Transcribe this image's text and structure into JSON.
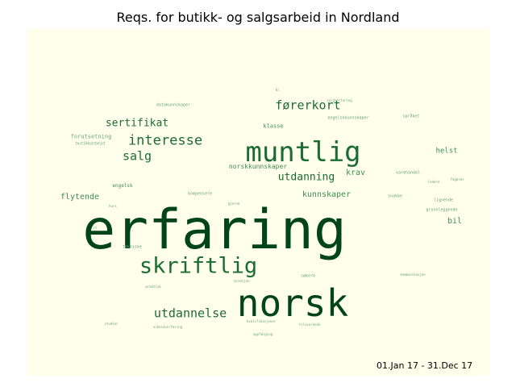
{
  "title": "Reqs. for butikk- og salgsarbeid in Nordland",
  "date_range": "01.Jan 17 - 31.Dec 17",
  "colors": {
    "background": "#ffffec",
    "dark": "#00441b",
    "medium": "#1b6b34",
    "light": "#3d8c55",
    "faint": "#6aa47a"
  },
  "words": [
    {
      "text": "erfaring",
      "weight": 1.0
    },
    {
      "text": "norsk",
      "weight": 0.55
    },
    {
      "text": "muntlig",
      "weight": 0.45
    },
    {
      "text": "skriftlig",
      "weight": 0.42
    },
    {
      "text": "utdannelse",
      "weight": 0.22
    },
    {
      "text": "interesse",
      "weight": 0.22
    },
    {
      "text": "salg",
      "weight": 0.2
    },
    {
      "text": "førerkort",
      "weight": 0.2
    },
    {
      "text": "sertifikat",
      "weight": 0.18
    },
    {
      "text": "utdanning",
      "weight": 0.16
    },
    {
      "text": "kunnskaper",
      "weight": 0.12
    },
    {
      "text": "flytende",
      "weight": 0.12
    },
    {
      "text": "krav",
      "weight": 0.12
    },
    {
      "text": "bil",
      "weight": 0.12
    },
    {
      "text": "helst",
      "weight": 0.11
    },
    {
      "text": "norskkunnskaper",
      "weight": 0.09
    },
    {
      "text": "klasse",
      "weight": 0.08
    },
    {
      "text": "forutsetning",
      "weight": 0.07
    },
    {
      "text": "engelsk",
      "weight": 0.07
    },
    {
      "text": "butikkarbeid",
      "weight": 0.05
    },
    {
      "text": "datakunnskaper",
      "weight": 0.05
    },
    {
      "text": "engelskkunnskaper",
      "weight": 0.05
    },
    {
      "text": "språket",
      "weight": 0.05
    },
    {
      "text": "varehandel",
      "weight": 0.05
    },
    {
      "text": "lignende",
      "weight": 0.05
    },
    {
      "text": "grunnleggende",
      "weight": 0.05
    },
    {
      "text": "snakke",
      "weight": 0.05
    },
    {
      "text": "kompensere",
      "weight": 0.05
    },
    {
      "text": "tekniske",
      "weight": 0.05
    },
    {
      "text": "søkere",
      "weight": 0.05
    },
    {
      "text": "arbeidserfaring",
      "weight": 0.04
    },
    {
      "text": "tilsvarende",
      "weight": 0.04
    },
    {
      "text": "oppfølging",
      "weight": 0.04
    },
    {
      "text": "fagbrev",
      "weight": 0.04
    },
    {
      "text": "gjerne",
      "weight": 0.04
    },
    {
      "text": "salgserfaring",
      "weight": 0.04
    },
    {
      "text": "kommunikasjon",
      "weight": 0.04
    },
    {
      "text": "studier",
      "weight": 0.04
    },
    {
      "text": "ledere",
      "weight": 0.03
    },
    {
      "text": "kvalifikasjoner",
      "weight": 0.03
    },
    {
      "text": "it",
      "weight": 0.03
    },
    {
      "text": "kl",
      "weight": 0.03
    },
    {
      "text": "kurs",
      "weight": 0.03
    },
    {
      "text": "bransjen",
      "weight": 0.03
    },
    {
      "text": "praktisk",
      "weight": 0.03
    }
  ]
}
